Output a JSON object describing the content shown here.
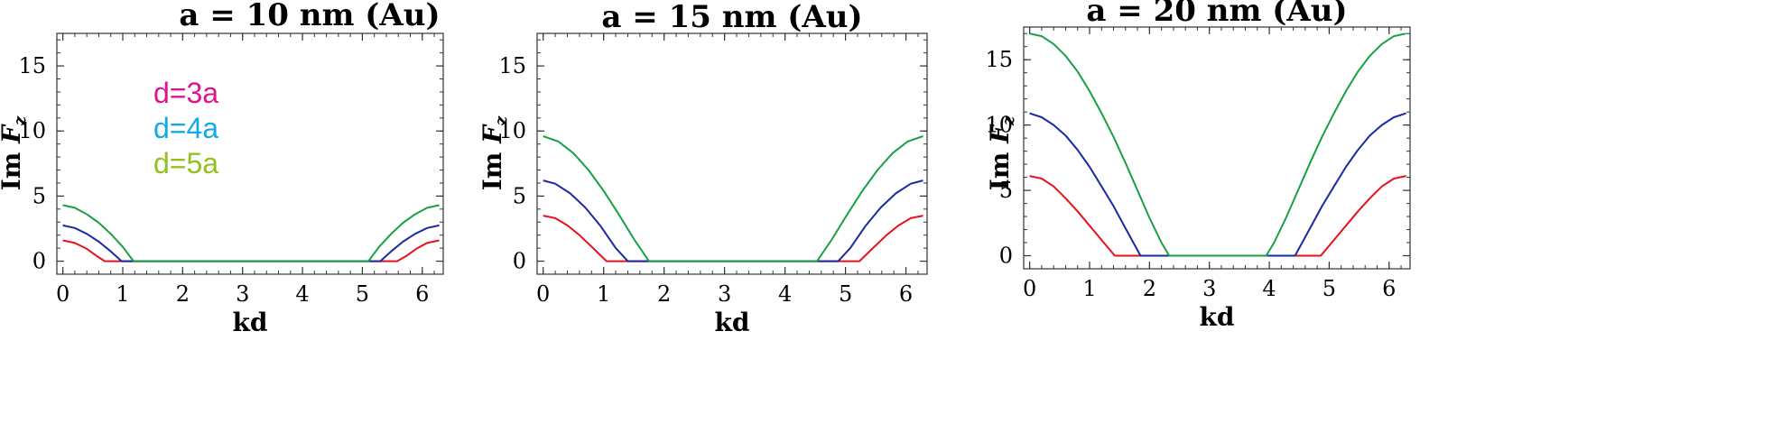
{
  "chart_data": [
    {
      "type": "line",
      "title": "a = 10 nm (Au)",
      "xlabel": "kd",
      "ylabel": "Im F",
      "ylabel_sub": "z",
      "xlim": [
        -0.1,
        6.35
      ],
      "ylim": [
        -1.0,
        17.5
      ],
      "xticks": [
        "0",
        "1",
        "2",
        "3",
        "4",
        "5",
        "6"
      ],
      "yticks": [
        "0",
        "5",
        "10",
        "15"
      ],
      "legend": {
        "position": "upper-left",
        "entries": [
          "d=3a",
          "d=4a",
          "d=5a"
        ]
      },
      "series": [
        {
          "name": "d=3a",
          "color": "#e8101a",
          "x": [
            0,
            0.2,
            0.4,
            0.55,
            0.7,
            5.58,
            5.75,
            5.9,
            6.08,
            6.283
          ],
          "y": [
            1.6,
            1.4,
            0.95,
            0.45,
            0,
            0,
            0.45,
            0.95,
            1.4,
            1.6
          ]
        },
        {
          "name": "d=4a",
          "color": "#1a2aa0",
          "x": [
            0,
            0.2,
            0.4,
            0.6,
            0.8,
            0.98,
            5.3,
            5.48,
            5.68,
            5.88,
            6.08,
            6.283
          ],
          "y": [
            2.75,
            2.55,
            2.1,
            1.5,
            0.75,
            0,
            0,
            0.75,
            1.5,
            2.1,
            2.55,
            2.75
          ]
        },
        {
          "name": "d=5a",
          "color": "#18a045",
          "x": [
            0,
            0.2,
            0.4,
            0.6,
            0.8,
            1.0,
            1.18,
            5.1,
            5.28,
            5.48,
            5.68,
            5.88,
            6.08,
            6.283
          ],
          "y": [
            4.3,
            4.1,
            3.6,
            2.95,
            2.1,
            1.1,
            0,
            0,
            1.1,
            2.1,
            2.95,
            3.6,
            4.1,
            4.3
          ]
        }
      ]
    },
    {
      "type": "line",
      "title": "a = 15 nm (Au)",
      "xlabel": "kd",
      "ylabel": "Im F",
      "ylabel_sub": "z",
      "xlim": [
        -0.1,
        6.35
      ],
      "ylim": [
        -1.0,
        17.5
      ],
      "xticks": [
        "0",
        "1",
        "2",
        "3",
        "4",
        "5",
        "6"
      ],
      "yticks": [
        "0",
        "5",
        "10",
        "15"
      ],
      "series": [
        {
          "name": "d=3a",
          "color": "#e8101a",
          "x": [
            0,
            0.2,
            0.4,
            0.6,
            0.85,
            1.05,
            5.23,
            5.43,
            5.68,
            5.88,
            6.08,
            6.283
          ],
          "y": [
            3.5,
            3.3,
            2.75,
            2.0,
            0.9,
            0,
            0,
            0.9,
            2.0,
            2.75,
            3.3,
            3.5
          ]
        },
        {
          "name": "d=4a",
          "color": "#1a2aa0",
          "x": [
            0,
            0.2,
            0.45,
            0.7,
            0.95,
            1.2,
            1.4,
            4.88,
            5.08,
            5.33,
            5.58,
            5.83,
            6.08,
            6.283
          ],
          "y": [
            6.2,
            5.95,
            5.2,
            4.1,
            2.7,
            1.0,
            0,
            0,
            1.0,
            2.7,
            4.1,
            5.2,
            5.95,
            6.2
          ]
        },
        {
          "name": "d=5a",
          "color": "#18a045",
          "x": [
            0,
            0.25,
            0.5,
            0.75,
            1.0,
            1.25,
            1.5,
            1.75,
            4.53,
            4.78,
            5.03,
            5.28,
            5.53,
            5.78,
            6.03,
            6.283
          ],
          "y": [
            9.6,
            9.2,
            8.3,
            7.0,
            5.4,
            3.6,
            1.7,
            0,
            0,
            1.7,
            3.6,
            5.4,
            7.0,
            8.3,
            9.2,
            9.6
          ]
        }
      ]
    },
    {
      "type": "line",
      "title": "a = 20 nm (Au)",
      "xlabel": "kd",
      "ylabel": "Im F",
      "ylabel_sub": "z",
      "xlim": [
        -0.1,
        6.35
      ],
      "ylim": [
        -1.0,
        17.5
      ],
      "xticks": [
        "0",
        "1",
        "2",
        "3",
        "4",
        "5",
        "6"
      ],
      "yticks": [
        "0",
        "5",
        "10",
        "15"
      ],
      "series": [
        {
          "name": "d=3a",
          "color": "#e8101a",
          "x": [
            0,
            0.2,
            0.4,
            0.6,
            0.8,
            1.0,
            1.2,
            1.42,
            4.86,
            5.08,
            5.28,
            5.48,
            5.68,
            5.88,
            6.08,
            6.283
          ],
          "y": [
            6.1,
            5.9,
            5.3,
            4.4,
            3.4,
            2.3,
            1.2,
            0,
            0,
            1.2,
            2.3,
            3.4,
            4.4,
            5.3,
            5.9,
            6.1
          ]
        },
        {
          "name": "d=4a",
          "color": "#1a2aa0",
          "x": [
            0,
            0.2,
            0.4,
            0.6,
            0.8,
            1.0,
            1.2,
            1.4,
            1.6,
            1.85,
            4.43,
            4.68,
            4.88,
            5.08,
            5.28,
            5.48,
            5.68,
            5.88,
            6.08,
            6.283
          ],
          "y": [
            10.9,
            10.6,
            10.0,
            9.2,
            8.1,
            6.8,
            5.3,
            3.8,
            2.1,
            0,
            0,
            2.1,
            3.8,
            5.3,
            6.8,
            8.1,
            9.2,
            10.0,
            10.6,
            10.9
          ]
        },
        {
          "name": "d=5a",
          "color": "#18a045",
          "x": [
            0,
            0.2,
            0.4,
            0.6,
            0.8,
            1.0,
            1.2,
            1.4,
            1.6,
            1.8,
            2.0,
            2.2,
            2.33,
            3.95,
            4.08,
            4.28,
            4.48,
            4.68,
            4.88,
            5.08,
            5.28,
            5.48,
            5.68,
            5.88,
            6.08,
            6.283
          ],
          "y": [
            17.0,
            16.8,
            16.2,
            15.3,
            14.1,
            12.6,
            10.9,
            9.1,
            7.1,
            5.0,
            2.9,
            1.0,
            0,
            0,
            1.0,
            2.9,
            5.0,
            7.1,
            9.1,
            10.9,
            12.6,
            14.1,
            15.3,
            16.2,
            16.8,
            17.0
          ]
        }
      ]
    }
  ],
  "legend_colors": [
    "#e0148c",
    "#13a9e6",
    "#93c01f"
  ]
}
